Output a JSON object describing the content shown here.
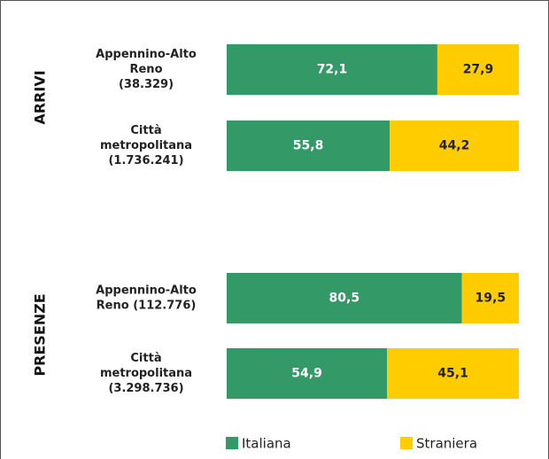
{
  "chart_data": {
    "type": "bar",
    "orientation": "horizontal",
    "stacked": true,
    "xlim": [
      0,
      100
    ],
    "groups": [
      {
        "label": "ARRIVI",
        "categories": [
          [
            "Appennino-Alto",
            "Reno",
            "(38.329)"
          ],
          [
            "Città",
            "metropolitana",
            "(1.736.241)"
          ]
        ]
      },
      {
        "label": "PRESENZE",
        "categories": [
          [
            "Appennino-Alto",
            "Reno (112.776)"
          ],
          [
            "Città",
            "metropolitana",
            "(3.298.736)"
          ]
        ]
      }
    ],
    "series": [
      {
        "name": "Italiana",
        "color": "#339966",
        "label_color": "#ffffff",
        "values": [
          72.1,
          55.8,
          80.5,
          54.9
        ],
        "value_labels": [
          "72,1",
          "55,8",
          "80,5",
          "54,9"
        ]
      },
      {
        "name": "Straniera",
        "color": "#ffcc00",
        "label_color": "#222222",
        "values": [
          27.9,
          44.2,
          19.5,
          45.1
        ],
        "value_labels": [
          "27,9",
          "44,2",
          "19,5",
          "45,1"
        ]
      }
    ]
  }
}
